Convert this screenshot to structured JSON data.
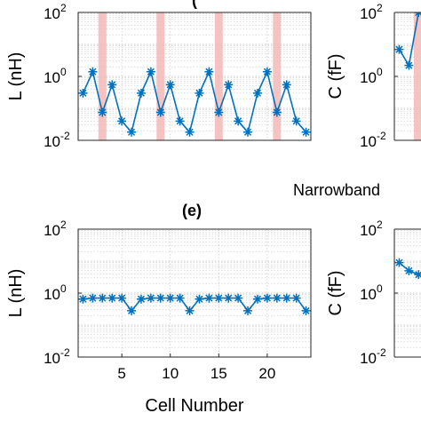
{
  "chart_data": [
    {
      "type": "line",
      "title": "",
      "xlabel": "",
      "ylabel": "L (nH)",
      "y_scale": "log",
      "ylim": [
        0.01,
        100
      ],
      "xlim": [
        0.5,
        24.5
      ],
      "y_ticks": [
        {
          "base": "10",
          "exp": "-2"
        },
        {
          "base": "10",
          "exp": "0"
        },
        {
          "base": "10",
          "exp": "2"
        }
      ],
      "x_ticks": [],
      "highlight_x": [
        3,
        9,
        15,
        21
      ],
      "highlight_color": "#f4b8b8",
      "line_color": "#0072bd",
      "grid": true,
      "x": [
        1,
        2,
        3,
        4,
        5,
        6,
        7,
        8,
        9,
        10,
        11,
        12,
        13,
        14,
        15,
        16,
        17,
        18,
        19,
        20,
        21,
        22,
        23,
        24
      ],
      "values": [
        0.3,
        1.4,
        0.075,
        0.55,
        0.04,
        0.018,
        0.3,
        1.4,
        0.075,
        0.55,
        0.04,
        0.018,
        0.3,
        1.4,
        0.075,
        0.55,
        0.04,
        0.018,
        0.3,
        1.4,
        0.075,
        0.55,
        0.04,
        0.018
      ]
    },
    {
      "type": "line",
      "title": "",
      "xlabel": "",
      "ylabel": "C (fF)",
      "y_scale": "log",
      "ylim": [
        0.01,
        100
      ],
      "y_ticks": [
        {
          "base": "10",
          "exp": "-2"
        },
        {
          "base": "10",
          "exp": "0"
        },
        {
          "base": "10",
          "exp": "2"
        }
      ],
      "line_color": "#0072bd",
      "grid": true,
      "x": [
        1,
        2,
        3
      ],
      "values": [
        7,
        2.2,
        100
      ]
    },
    {
      "type": "line",
      "title": "(e)",
      "xlabel": "Cell Number",
      "ylabel": "L (nH)",
      "y_scale": "log",
      "ylim": [
        0.01,
        100
      ],
      "xlim": [
        0.5,
        24.5
      ],
      "y_ticks": [
        {
          "base": "10",
          "exp": "-2"
        },
        {
          "base": "10",
          "exp": "0"
        },
        {
          "base": "10",
          "exp": "2"
        }
      ],
      "x_ticks": [
        5,
        10,
        15,
        20
      ],
      "line_color": "#0072bd",
      "grid": true,
      "x": [
        1,
        2,
        3,
        4,
        5,
        6,
        7,
        8,
        9,
        10,
        11,
        12,
        13,
        14,
        15,
        16,
        17,
        18,
        19,
        20,
        21,
        22,
        23,
        24
      ],
      "values": [
        0.65,
        0.7,
        0.7,
        0.7,
        0.7,
        0.28,
        0.65,
        0.7,
        0.7,
        0.7,
        0.7,
        0.28,
        0.65,
        0.7,
        0.7,
        0.7,
        0.7,
        0.28,
        0.65,
        0.7,
        0.7,
        0.7,
        0.7,
        0.28
      ]
    },
    {
      "type": "line",
      "title": "",
      "xlabel": "",
      "ylabel": "C (fF)",
      "y_scale": "log",
      "ylim": [
        0.01,
        100
      ],
      "y_ticks": [
        {
          "base": "10",
          "exp": "-2"
        },
        {
          "base": "10",
          "exp": "0"
        },
        {
          "base": "10",
          "exp": "2"
        }
      ],
      "line_color": "#0072bd",
      "grid": true,
      "x": [
        1,
        2,
        3
      ],
      "values": [
        9,
        5,
        3.8
      ]
    }
  ],
  "partial_title": "(",
  "annotation": "Narrowband"
}
